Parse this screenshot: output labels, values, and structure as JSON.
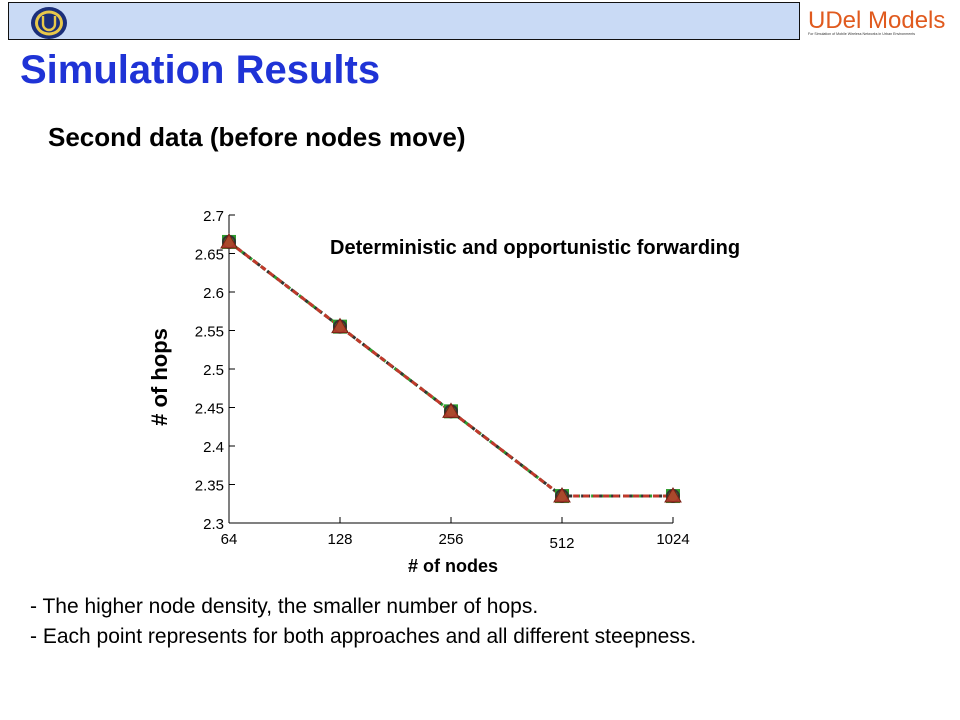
{
  "header": {
    "brand_text": "UDel Models",
    "brand_tagline": "For Simulation of Mobile Wireless Networks in Urban Environments",
    "colors": {
      "bar": "#c9daf5",
      "title": "#1f33d6",
      "brand": "#e05a1e"
    }
  },
  "page": {
    "title": "Simulation Results",
    "subtitle": "Second data (before nodes move)"
  },
  "chart_data": {
    "type": "line",
    "title": "Deterministic and opportunistic forwarding",
    "xlabel": "# of nodes",
    "ylabel": "# of hops",
    "x_scale": "log2",
    "categories": [
      "64",
      "128",
      "256",
      "512",
      "1024"
    ],
    "x": [
      64,
      128,
      256,
      512,
      1024
    ],
    "yticks": [
      "2.3",
      "2.35",
      "2.4",
      "2.45",
      "2.5",
      "2.55",
      "2.6",
      "2.65",
      "2.7"
    ],
    "ylim": [
      2.3,
      2.7
    ],
    "grid": false,
    "series": [
      {
        "values": [
          2.665,
          2.555,
          2.445,
          2.335,
          2.335
        ],
        "color": "#2e9e2e",
        "marker": "square"
      },
      {
        "values": [
          2.665,
          2.555,
          2.445,
          2.335,
          2.335
        ],
        "color": "#333333",
        "marker": "circle"
      },
      {
        "values": [
          2.665,
          2.555,
          2.445,
          2.335,
          2.335
        ],
        "color": "#c0392b",
        "marker": "triangle"
      }
    ]
  },
  "notes": [
    "The higher node density, the smaller number of hops.",
    "Each point represents for both approaches and all different steepness."
  ]
}
